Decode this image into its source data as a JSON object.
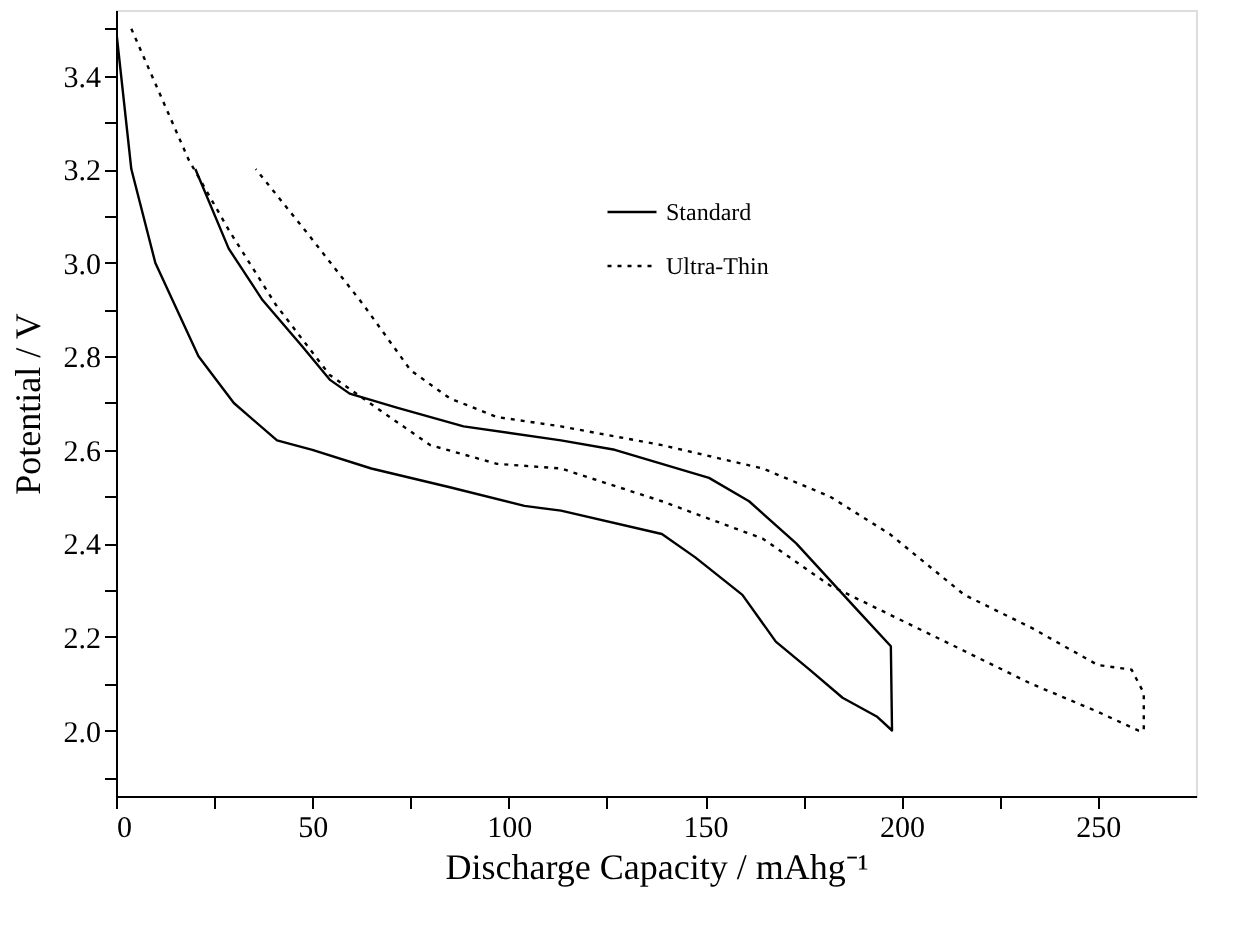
{
  "chart_data": {
    "type": "line",
    "xlabel": "Discharge Capacity / mAhg⁻¹",
    "ylabel": "Potential / V",
    "xlim": [
      0,
      275
    ],
    "ylim": [
      1.86,
      3.54
    ],
    "xticks": [
      0,
      {
        "value": 25,
        "label": null
      },
      50,
      {
        "value": 75,
        "label": null
      },
      100,
      {
        "value": 125,
        "label": null
      },
      150,
      {
        "value": 175,
        "label": null
      },
      200,
      {
        "value": 225,
        "label": null
      },
      250
    ],
    "yticks": [
      {
        "value": 1.9,
        "label": null
      },
      "2.0",
      {
        "value": 2.1,
        "label": null
      },
      2.2,
      {
        "value": 2.3,
        "label": null
      },
      2.4,
      {
        "value": 2.5,
        "label": null
      },
      2.6,
      {
        "value": 2.7,
        "label": null
      },
      2.8,
      {
        "value": 2.9,
        "label": null
      },
      "3.0",
      {
        "value": 3.1,
        "label": null
      },
      3.2,
      {
        "value": 3.3,
        "label": null
      },
      3.4,
      {
        "value": 3.5,
        "label": null
      }
    ],
    "grid": false,
    "legend": "top right",
    "marker": "none",
    "series": [
      {
        "name": "Standard",
        "color": "#000000",
        "line_style": "solid",
        "x": [
          0,
          3.9,
          10,
          21,
          30,
          41,
          50,
          65,
          85,
          104,
          113.3,
          139,
          147.5,
          159.5,
          168,
          176.6,
          185,
          193.7,
          197.6,
          197.3,
          188.5,
          173.2,
          161.2,
          151,
          139,
          127,
          113.3,
          88.5,
          71.5,
          59.5,
          54.4,
          47.5,
          37.3,
          28.7,
          20.2
        ],
        "values": [
          3.5,
          3.2,
          3.0,
          2.8,
          2.7,
          2.62,
          2.6,
          2.56,
          2.52,
          2.48,
          2.47,
          2.42,
          2.37,
          2.29,
          2.19,
          2.13,
          2.07,
          2.03,
          2.0,
          2.18,
          2.26,
          2.4,
          2.49,
          2.54,
          2.57,
          2.6,
          2.62,
          2.65,
          2.69,
          2.72,
          2.75,
          2.82,
          2.92,
          3.03,
          3.2
        ]
      },
      {
        "name": "Ultra-Thin",
        "color": "#000000",
        "line_style": "dotted",
        "x": [
          3.9,
          18.5,
          28.7,
          40.7,
          54.4,
          68,
          80,
          97,
          113.3,
          139,
          164.7,
          181.8,
          198.9,
          216,
          233,
          250,
          260.3,
          261.7,
          261.7,
          258.6,
          250,
          233,
          216,
          197,
          181.8,
          164.7,
          139,
          113.3,
          97,
          85,
          75,
          63,
          49,
          35.6
        ],
        "values": [
          3.5,
          3.22,
          3.07,
          2.91,
          2.76,
          2.68,
          2.61,
          2.57,
          2.56,
          2.49,
          2.41,
          2.31,
          2.24,
          2.17,
          2.1,
          2.04,
          2.0,
          2.0,
          2.08,
          2.13,
          2.14,
          2.22,
          2.29,
          2.42,
          2.5,
          2.56,
          2.61,
          2.65,
          2.67,
          2.71,
          2.77,
          2.91,
          3.06,
          3.2
        ]
      }
    ]
  }
}
